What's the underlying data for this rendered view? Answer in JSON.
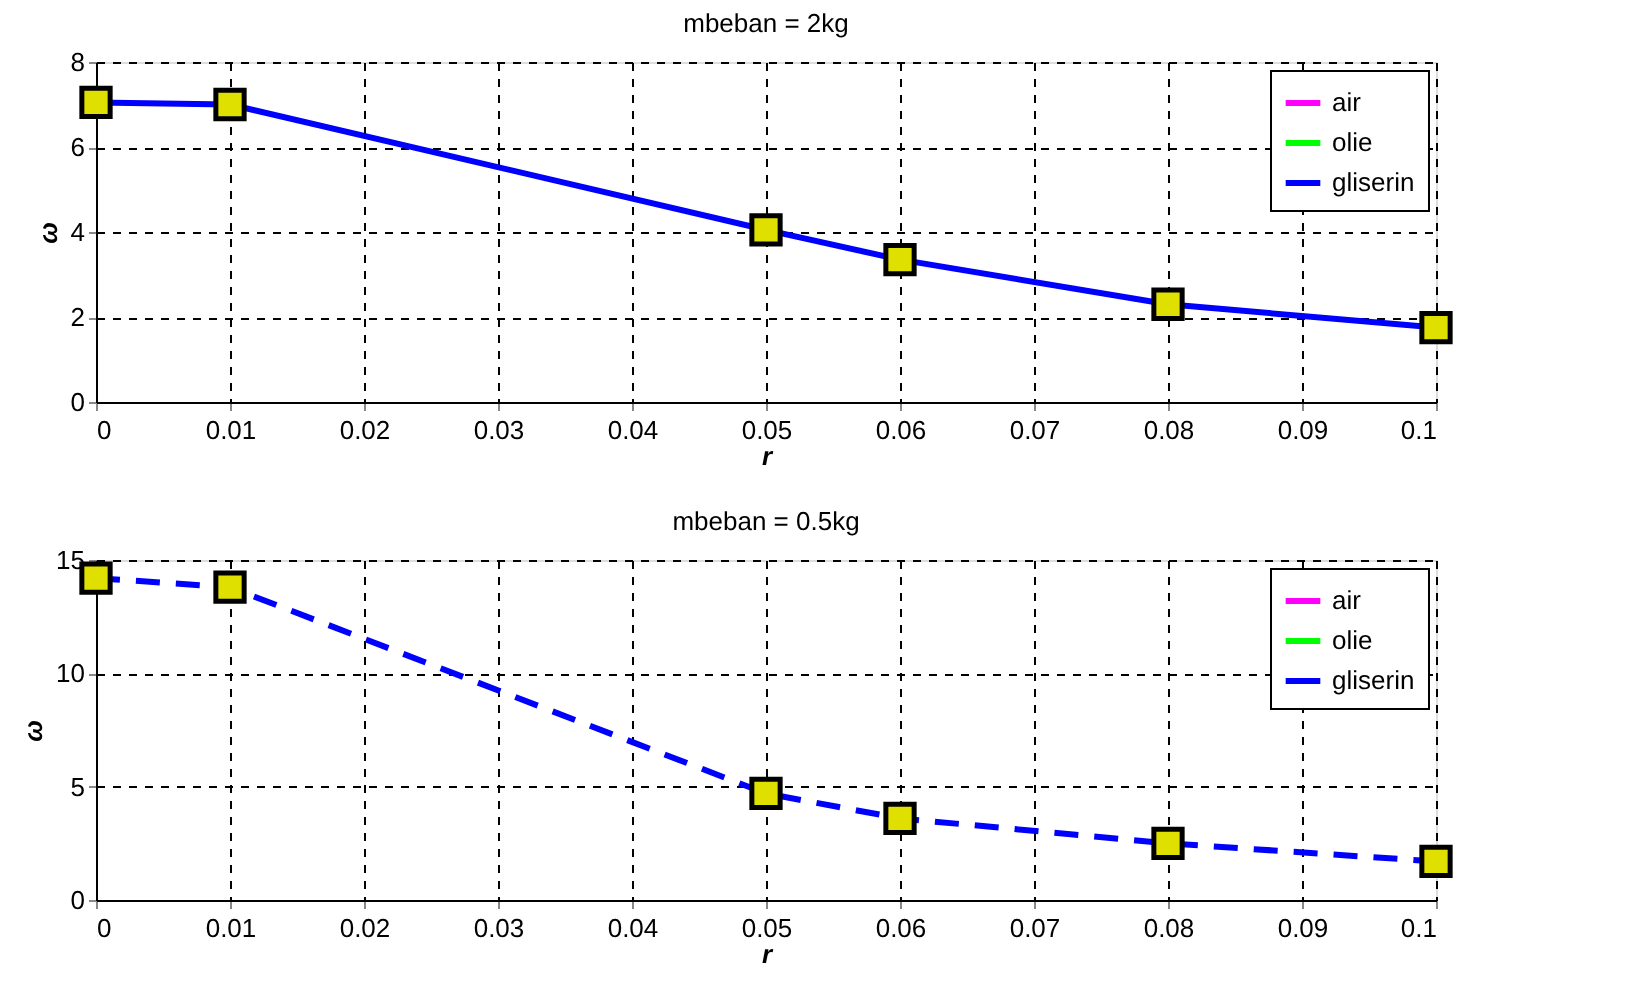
{
  "chart_data": [
    {
      "type": "line",
      "title": "mbeban = 2kg",
      "xlabel": "r",
      "ylabel": "ω",
      "x": [
        0,
        0.01,
        0.05,
        0.06,
        0.08,
        0.1
      ],
      "series": [
        {
          "name": "air",
          "color": "#ff00ff",
          "values": [
            null,
            null,
            null,
            null,
            null,
            null
          ]
        },
        {
          "name": "olie",
          "color": "#00ff00",
          "values": [
            null,
            null,
            null,
            null,
            null,
            null
          ]
        },
        {
          "name": "gliserin",
          "color": "#0000ff",
          "values": [
            7.05,
            7.0,
            4.05,
            3.35,
            2.3,
            1.75
          ],
          "line_style": "solid"
        }
      ],
      "xlim": [
        0,
        0.1
      ],
      "ylim": [
        0,
        8
      ],
      "xticks": [
        0,
        0.01,
        0.02,
        0.03,
        0.04,
        0.05,
        0.06,
        0.07,
        0.08,
        0.09,
        0.1
      ],
      "yticks": [
        0,
        2,
        4,
        6,
        8
      ],
      "grid": true,
      "legend": "top right",
      "marker": "square"
    },
    {
      "type": "line",
      "title": "mbeban = 0.5kg",
      "xlabel": "r",
      "ylabel": "ω",
      "x": [
        0,
        0.01,
        0.05,
        0.06,
        0.08,
        0.1
      ],
      "series": [
        {
          "name": "air",
          "color": "#ff00ff",
          "values": [
            null,
            null,
            null,
            null,
            null,
            null
          ]
        },
        {
          "name": "olie",
          "color": "#00ff00",
          "values": [
            null,
            null,
            null,
            null,
            null,
            null
          ]
        },
        {
          "name": "gliserin",
          "color": "#0000ff",
          "values": [
            14.2,
            13.8,
            4.7,
            3.6,
            2.5,
            1.7
          ],
          "line_style": "dashed"
        }
      ],
      "xlim": [
        0,
        0.1
      ],
      "ylim": [
        0,
        15
      ],
      "xticks": [
        0,
        0.01,
        0.02,
        0.03,
        0.04,
        0.05,
        0.06,
        0.07,
        0.08,
        0.09,
        0.1
      ],
      "yticks": [
        0,
        5,
        10,
        15
      ],
      "grid": true,
      "legend": "top right",
      "marker": "square"
    }
  ]
}
